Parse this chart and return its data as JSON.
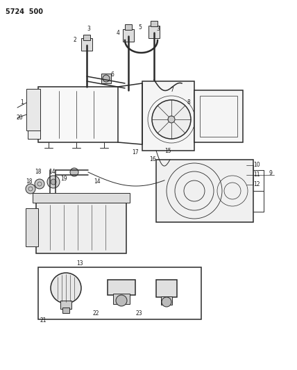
{
  "title": "5724  500",
  "bg": "#ffffff",
  "lc": "#2a2a2a",
  "figsize": [
    4.28,
    5.33
  ],
  "dpi": 100
}
